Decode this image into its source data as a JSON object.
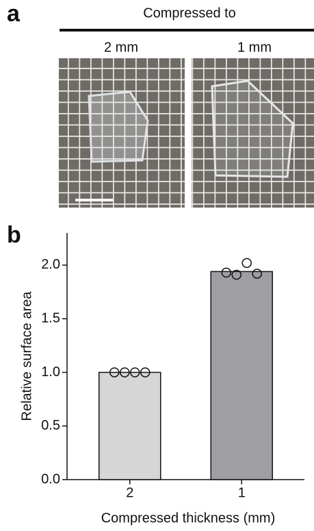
{
  "panel_a": {
    "label": "a",
    "header": "Compressed to",
    "columns": [
      "2 mm",
      "1 mm"
    ]
  },
  "chart_data": {
    "type": "bar",
    "panel_label": "b",
    "x_label": "Compressed thickness (mm)",
    "y_label": "Relative surface area",
    "categories": [
      "2",
      "1"
    ],
    "values": [
      1.0,
      1.94
    ],
    "colors": [
      "#d6d6d6",
      "#9e9ea3"
    ],
    "points": [
      [
        1.0,
        1.0,
        1.0,
        1.0
      ],
      [
        1.93,
        1.91,
        2.02,
        1.92
      ]
    ],
    "ylim": [
      0,
      2.3
    ],
    "yticks": [
      {
        "value": 0,
        "label": "0.0"
      },
      {
        "value": 0.5,
        "label": "0.5"
      },
      {
        "value": 1,
        "label": "1.0"
      },
      {
        "value": 1.5,
        "label": "1.5"
      },
      {
        "value": 2,
        "label": "2.0"
      }
    ]
  }
}
